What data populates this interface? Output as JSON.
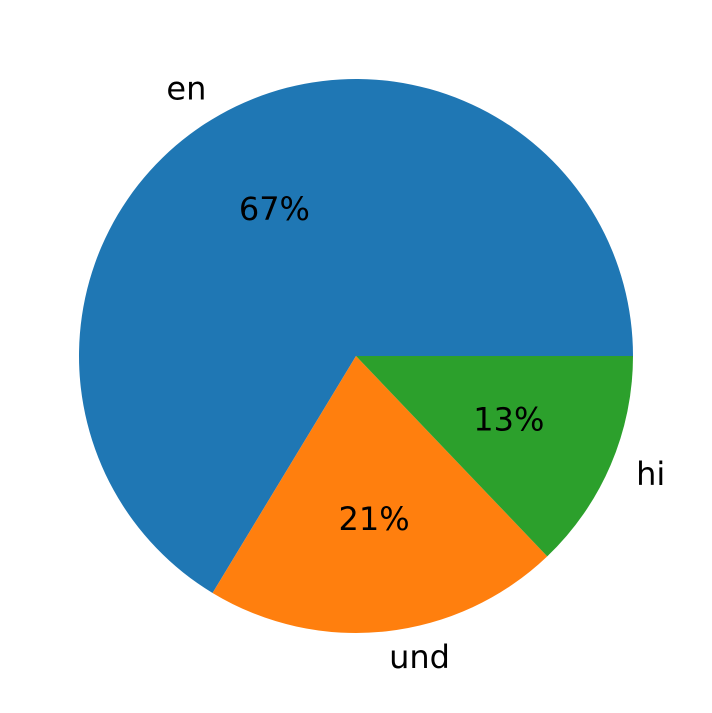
{
  "chart_data": {
    "type": "pie",
    "categories": [
      "en",
      "und",
      "hi"
    ],
    "values": [
      67,
      21,
      13
    ],
    "value_labels": [
      "67%",
      "21%",
      "13%"
    ],
    "colors": [
      "#1f77b4",
      "#ff7f0e",
      "#2ca02c"
    ]
  }
}
